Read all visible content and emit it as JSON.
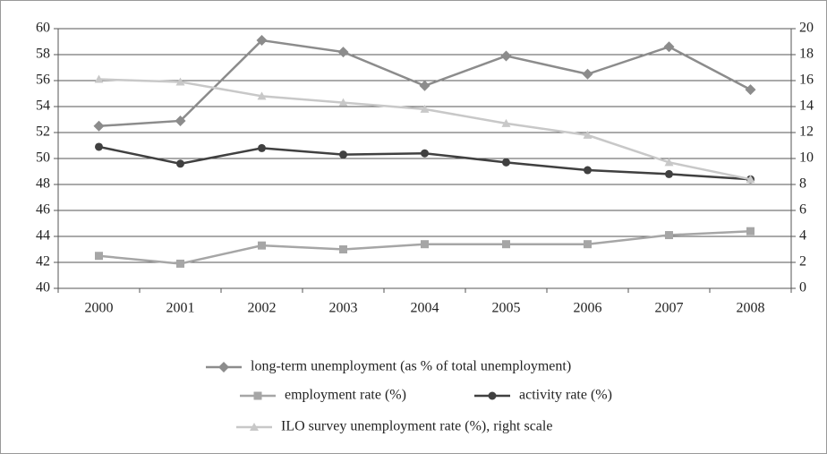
{
  "chart_data": {
    "type": "line",
    "categories": [
      "2000",
      "2001",
      "2002",
      "2003",
      "2004",
      "2005",
      "2006",
      "2007",
      "2008"
    ],
    "series": [
      {
        "name": "long-term unemployment (as % of total unemployment)",
        "color": "#8c8c8c",
        "marker": "diamond",
        "values": [
          52.5,
          52.9,
          59.1,
          58.2,
          55.6,
          57.9,
          56.5,
          58.6,
          55.3
        ]
      },
      {
        "name": "employment rate (%)",
        "color": "#a6a6a6",
        "marker": "square",
        "values": [
          42.5,
          41.9,
          43.3,
          43.0,
          43.4,
          43.4,
          43.4,
          44.1,
          44.4
        ]
      },
      {
        "name": "activity rate (%)",
        "color": "#404040",
        "marker": "circle",
        "values": [
          50.9,
          49.6,
          50.8,
          50.3,
          50.4,
          49.7,
          49.1,
          48.8,
          48.4
        ]
      },
      {
        "name": "ILO survey unemployment rate (%), right scale",
        "color": "#c8c8c8",
        "marker": "triangle",
        "axis": "y2",
        "values": [
          16.1,
          15.9,
          14.8,
          14.3,
          13.8,
          12.7,
          11.8,
          9.7,
          8.4
        ]
      }
    ],
    "ylim": [
      40,
      60
    ],
    "yticks": [
      40,
      42,
      44,
      46,
      48,
      50,
      52,
      54,
      56,
      58,
      60
    ],
    "y2lim": [
      0,
      20
    ],
    "y2ticks": [
      0,
      2,
      4,
      6,
      8,
      10,
      12,
      14,
      16,
      18,
      20
    ],
    "grid": true
  }
}
